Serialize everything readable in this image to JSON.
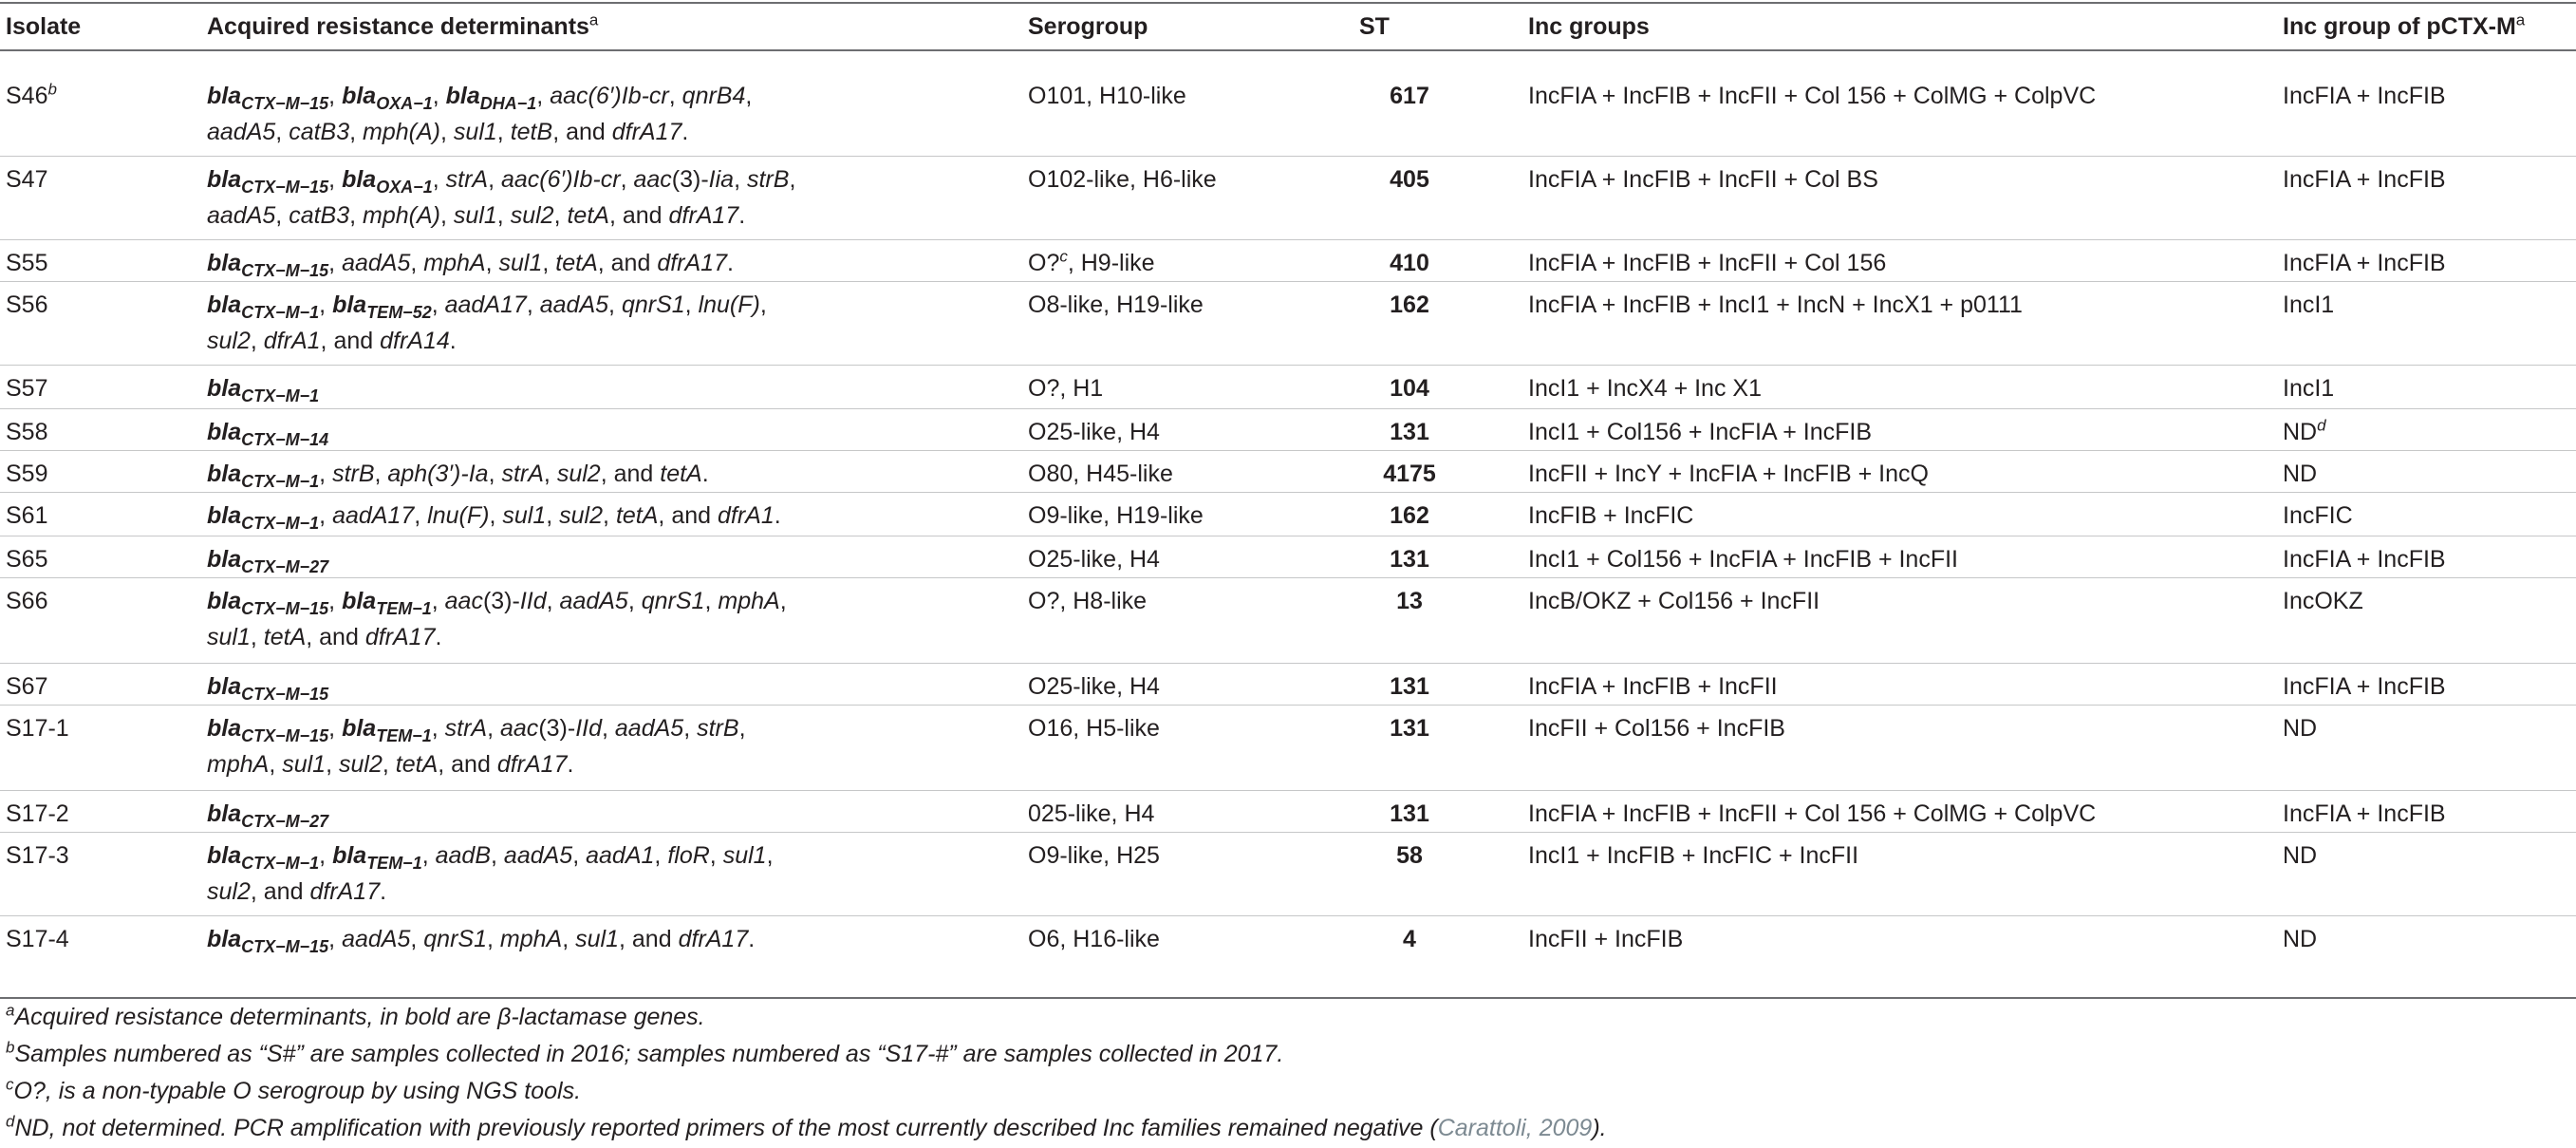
{
  "headers": {
    "isolate": "Isolate",
    "determinants": "Acquired resistance determinants",
    "serogroup": "Serogroup",
    "st": "ST",
    "inc_groups": "Inc groups",
    "inc_pctx": "Inc group of pCTX-M",
    "inc_pctx_sup": "a"
  },
  "rows": [
    {
      "isolate": "S46",
      "isolate_sup": "b",
      "serogroup": "O101, H10-like",
      "st": "617",
      "inc": "IncFIA + IncFIB + IncFII + Col 156 + ColMG + ColpVC",
      "pctx": "IncFIA + IncFIB",
      "det": [
        [
          [
            "bla",
            "CTX−M−15"
          ],
          [
            "t",
            ", "
          ],
          [
            "bla",
            "OXA−1"
          ],
          [
            "t",
            ", "
          ],
          [
            "bla",
            "DHA−1"
          ],
          [
            "t",
            ", "
          ],
          [
            "i",
            "aac(6′)Ib-cr"
          ],
          [
            "t",
            ", "
          ],
          [
            "i",
            "qnrB4"
          ],
          [
            "t",
            ","
          ]
        ],
        [
          [
            "i",
            "aadA5"
          ],
          [
            "t",
            ", "
          ],
          [
            "i",
            "catB3"
          ],
          [
            "t",
            ", "
          ],
          [
            "i",
            "mph(A)"
          ],
          [
            "t",
            ", "
          ],
          [
            "i",
            "sul1"
          ],
          [
            "t",
            ", "
          ],
          [
            "i",
            "tetB"
          ],
          [
            "t",
            ", and "
          ],
          [
            "i",
            "dfrA17"
          ],
          [
            "t",
            "."
          ]
        ]
      ]
    },
    {
      "isolate": "S47",
      "serogroup": "O102-like, H6-like",
      "st": "405",
      "inc": "IncFIA + IncFIB + IncFII + Col BS",
      "pctx": "IncFIA + IncFIB",
      "det": [
        [
          [
            "bla",
            "CTX−M−15"
          ],
          [
            "t",
            ", "
          ],
          [
            "bla",
            "OXA−1"
          ],
          [
            "t",
            ", "
          ],
          [
            "i",
            "strA"
          ],
          [
            "t",
            ", "
          ],
          [
            "i",
            "aac(6′)Ib-cr"
          ],
          [
            "t",
            ", "
          ],
          [
            "i",
            "aac"
          ],
          [
            "t",
            "(3)-"
          ],
          [
            "i",
            "Iia"
          ],
          [
            "t",
            ", "
          ],
          [
            "i",
            "strB"
          ],
          [
            "t",
            ","
          ]
        ],
        [
          [
            "i",
            "aadA5"
          ],
          [
            "t",
            ", "
          ],
          [
            "i",
            "catB3"
          ],
          [
            "t",
            ", "
          ],
          [
            "i",
            "mph(A)"
          ],
          [
            "t",
            ", "
          ],
          [
            "i",
            "sul1"
          ],
          [
            "t",
            ", "
          ],
          [
            "i",
            "sul2"
          ],
          [
            "t",
            ", "
          ],
          [
            "i",
            "tetA"
          ],
          [
            "t",
            ", and "
          ],
          [
            "i",
            "dfrA17"
          ],
          [
            "t",
            "."
          ]
        ]
      ]
    },
    {
      "isolate": "S55",
      "serogroup": "O?",
      "serogroup_sup": "c",
      "serogroup_rest": ", H9-like",
      "st": "410",
      "inc": "IncFIA + IncFIB + IncFII + Col 156",
      "pctx": "IncFIA + IncFIB",
      "det": [
        [
          [
            "bla",
            "CTX−M−15"
          ],
          [
            "t",
            ", "
          ],
          [
            "i",
            "aadA5"
          ],
          [
            "t",
            ", "
          ],
          [
            "i",
            "mphA"
          ],
          [
            "t",
            ", "
          ],
          [
            "i",
            "sul1"
          ],
          [
            "t",
            ", "
          ],
          [
            "i",
            "tetA"
          ],
          [
            "t",
            ", and "
          ],
          [
            "i",
            "dfrA17"
          ],
          [
            "t",
            "."
          ]
        ]
      ]
    },
    {
      "isolate": "S56",
      "serogroup": "O8-like, H19-like",
      "st": "162",
      "inc": "IncFIA + IncFIB + IncI1 + IncN + IncX1 + p0111",
      "pctx": "IncI1",
      "det": [
        [
          [
            "bla",
            "CTX−M−1"
          ],
          [
            "t",
            ", "
          ],
          [
            "bla",
            "TEM−52"
          ],
          [
            "t",
            ", "
          ],
          [
            "i",
            "aadA17"
          ],
          [
            "t",
            ", "
          ],
          [
            "i",
            "aadA5"
          ],
          [
            "t",
            ", "
          ],
          [
            "i",
            "qnrS1"
          ],
          [
            "t",
            ", "
          ],
          [
            "i",
            "lnu(F)"
          ],
          [
            "t",
            ","
          ]
        ],
        [
          [
            "i",
            "sul2"
          ],
          [
            "t",
            ", "
          ],
          [
            "i",
            "dfrA1"
          ],
          [
            "t",
            ", and "
          ],
          [
            "i",
            "dfrA14"
          ],
          [
            "t",
            "."
          ]
        ]
      ]
    },
    {
      "isolate": "S57",
      "serogroup": "O?, H1",
      "st": "104",
      "inc": "IncI1 + IncX4 + Inc X1",
      "pctx": "IncI1",
      "det": [
        [
          [
            "bla",
            "CTX−M−1"
          ]
        ]
      ]
    },
    {
      "isolate": "S58",
      "serogroup": "O25-like, H4",
      "st": "131",
      "inc": "IncI1 + Col156 + IncFIA + IncFIB",
      "pctx": "ND",
      "pctx_sup": "d",
      "det": [
        [
          [
            "bla",
            "CTX−M−14"
          ]
        ]
      ]
    },
    {
      "isolate": "S59",
      "serogroup": "O80, H45-like",
      "st": "4175",
      "inc": "IncFII + IncY + IncFIA + IncFIB + IncQ",
      "pctx": "ND",
      "det": [
        [
          [
            "bla",
            "CTX−M−1"
          ],
          [
            "t",
            ", "
          ],
          [
            "i",
            "strB"
          ],
          [
            "t",
            ", "
          ],
          [
            "i",
            "aph(3′)-Ia"
          ],
          [
            "t",
            ", "
          ],
          [
            "i",
            "strA"
          ],
          [
            "t",
            ", "
          ],
          [
            "i",
            "sul2"
          ],
          [
            "t",
            ", and "
          ],
          [
            "i",
            "tetA"
          ],
          [
            "t",
            "."
          ]
        ]
      ]
    },
    {
      "isolate": "S61",
      "serogroup": "O9-like, H19-like",
      "st": "162",
      "inc": "IncFIB + IncFIC",
      "pctx": "IncFIC",
      "det": [
        [
          [
            "bla",
            "CTX−M−1"
          ],
          [
            "t",
            ", "
          ],
          [
            "i",
            "aadA17"
          ],
          [
            "t",
            ", "
          ],
          [
            "i",
            "lnu(F)"
          ],
          [
            "t",
            ", "
          ],
          [
            "i",
            "sul1"
          ],
          [
            "t",
            ", "
          ],
          [
            "i",
            "sul2"
          ],
          [
            "t",
            ", "
          ],
          [
            "i",
            "tetA"
          ],
          [
            "t",
            ", and "
          ],
          [
            "i",
            "dfrA1"
          ],
          [
            "t",
            "."
          ]
        ]
      ]
    },
    {
      "isolate": "S65",
      "serogroup": "O25-like, H4",
      "st": "131",
      "inc": "IncI1 + Col156 + IncFIA + IncFIB + IncFII",
      "pctx": "IncFIA + IncFIB",
      "det": [
        [
          [
            "bla",
            "CTX−M−27"
          ]
        ]
      ]
    },
    {
      "isolate": "S66",
      "serogroup": "O?, H8-like",
      "st": "13",
      "inc": "IncB/OKZ + Col156 + IncFII",
      "pctx": "IncOKZ",
      "det": [
        [
          [
            "bla",
            "CTX−M−15"
          ],
          [
            "t",
            ", "
          ],
          [
            "bla",
            "TEM−1"
          ],
          [
            "t",
            ", "
          ],
          [
            "i",
            "aac"
          ],
          [
            "t",
            "(3)-"
          ],
          [
            "i",
            "IId"
          ],
          [
            "t",
            ", "
          ],
          [
            "i",
            "aadA5"
          ],
          [
            "t",
            ", "
          ],
          [
            "i",
            "qnrS1"
          ],
          [
            "t",
            ", "
          ],
          [
            "i",
            "mphA"
          ],
          [
            "t",
            ","
          ]
        ],
        [
          [
            "i",
            "sul1"
          ],
          [
            "t",
            ", "
          ],
          [
            "i",
            "tetA"
          ],
          [
            "t",
            ", and "
          ],
          [
            "i",
            "dfrA17"
          ],
          [
            "t",
            "."
          ]
        ]
      ]
    },
    {
      "isolate": "S67",
      "serogroup": "O25-like, H4",
      "st": "131",
      "inc": "IncFIA + IncFIB + IncFII",
      "pctx": "IncFIA + IncFIB",
      "det": [
        [
          [
            "bla",
            "CTX−M−15"
          ]
        ]
      ]
    },
    {
      "isolate": "S17-1",
      "serogroup": "O16, H5-like",
      "st": "131",
      "inc": "IncFII + Col156 + IncFIB",
      "pctx": "ND",
      "det": [
        [
          [
            "bla",
            "CTX−M−15"
          ],
          [
            "t",
            ", "
          ],
          [
            "bla",
            "TEM−1"
          ],
          [
            "t",
            ", "
          ],
          [
            "i",
            "strA"
          ],
          [
            "t",
            ", "
          ],
          [
            "i",
            "aac"
          ],
          [
            "t",
            "(3)-"
          ],
          [
            "i",
            "IId"
          ],
          [
            "t",
            ", "
          ],
          [
            "i",
            "aadA5"
          ],
          [
            "t",
            ", "
          ],
          [
            "i",
            "strB"
          ],
          [
            "t",
            ","
          ]
        ],
        [
          [
            "i",
            "mphA"
          ],
          [
            "t",
            ", "
          ],
          [
            "i",
            "sul1"
          ],
          [
            "t",
            ", "
          ],
          [
            "i",
            "sul2"
          ],
          [
            "t",
            ", "
          ],
          [
            "i",
            "tetA"
          ],
          [
            "t",
            ", and "
          ],
          [
            "i",
            "dfrA17"
          ],
          [
            "t",
            "."
          ]
        ]
      ]
    },
    {
      "isolate": "S17-2",
      "serogroup": "025-like, H4",
      "st": "131",
      "inc": "IncFIA + IncFIB + IncFII + Col 156 + ColMG + ColpVC",
      "pctx": "IncFIA + IncFIB",
      "det": [
        [
          [
            "bla",
            "CTX−M−27"
          ]
        ]
      ]
    },
    {
      "isolate": "S17-3",
      "serogroup": "O9-like, H25",
      "st": "58",
      "inc": "IncI1 + IncFIB + IncFIC + IncFII",
      "pctx": "ND",
      "det": [
        [
          [
            "bla",
            "CTX−M−1"
          ],
          [
            "t",
            ", "
          ],
          [
            "bla",
            "TEM−1"
          ],
          [
            "t",
            ", "
          ],
          [
            "i",
            "aadB"
          ],
          [
            "t",
            ", "
          ],
          [
            "i",
            "aadA5"
          ],
          [
            "t",
            ", "
          ],
          [
            "i",
            "aadA1"
          ],
          [
            "t",
            ", "
          ],
          [
            "i",
            "floR"
          ],
          [
            "t",
            ", "
          ],
          [
            "i",
            "sul1"
          ],
          [
            "t",
            ","
          ]
        ],
        [
          [
            "i",
            "sul2"
          ],
          [
            "t",
            ", and "
          ],
          [
            "i",
            "dfrA17"
          ],
          [
            "t",
            "."
          ]
        ]
      ]
    },
    {
      "isolate": "S17-4",
      "serogroup": "O6, H16-like",
      "st": "4",
      "inc": "IncFII + IncFIB",
      "pctx": "ND",
      "det": [
        [
          [
            "bla",
            "CTX−M−15"
          ],
          [
            "t",
            ", "
          ],
          [
            "i",
            "aadA5"
          ],
          [
            "t",
            ", "
          ],
          [
            "i",
            "qnrS1"
          ],
          [
            "t",
            ", "
          ],
          [
            "i",
            "mphA"
          ],
          [
            "t",
            ", "
          ],
          [
            "i",
            "sul1"
          ],
          [
            "t",
            ", and "
          ],
          [
            "i",
            "dfrA17"
          ],
          [
            "t",
            "."
          ]
        ]
      ]
    }
  ],
  "footnotes": [
    {
      "mark": "a",
      "text": "Acquired resistance determinants, in bold are β-lactamase genes."
    },
    {
      "mark": "b",
      "text": "Samples numbered as “S#” are samples collected in 2016; samples numbered as “S17-#” are samples collected in 2017."
    },
    {
      "mark": "c",
      "text": "O?, is a non-typable O serogroup by using NGS tools."
    },
    {
      "mark": "d",
      "text": "ND, not determined. PCR amplification with previously reported primers of the most currently described Inc families remained negative (",
      "cite": "Carattoli, 2009",
      "tail": ")."
    }
  ]
}
